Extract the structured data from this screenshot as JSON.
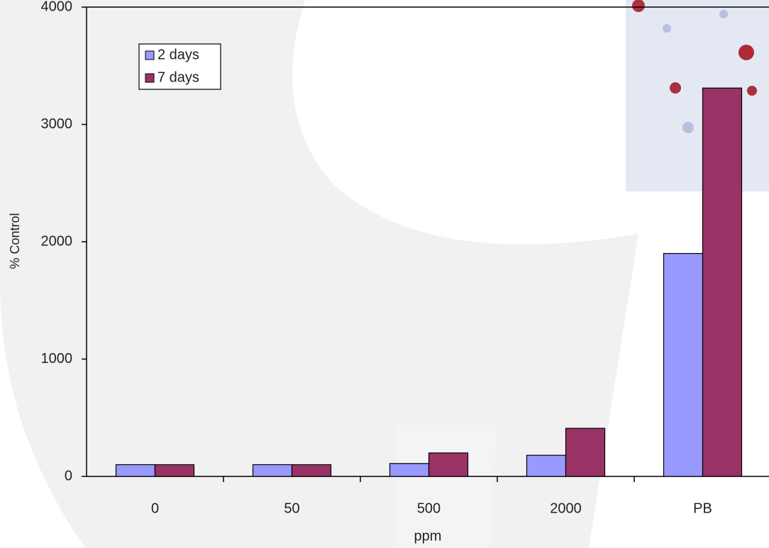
{
  "chart_data": {
    "type": "bar",
    "categories": [
      "0",
      "50",
      "500",
      "2000",
      "PB"
    ],
    "series": [
      {
        "name": "2 days",
        "color": "#9999ff",
        "values": [
          100,
          100,
          110,
          180,
          1900
        ]
      },
      {
        "name": "7 days",
        "color": "#993366",
        "values": [
          100,
          100,
          200,
          410,
          3310
        ]
      }
    ],
    "x_label": "ppm",
    "y_label": "% Control",
    "ylim": [
      0,
      4000
    ],
    "yticks": [
      0,
      1000,
      2000,
      3000,
      4000
    ],
    "grid": false
  }
}
